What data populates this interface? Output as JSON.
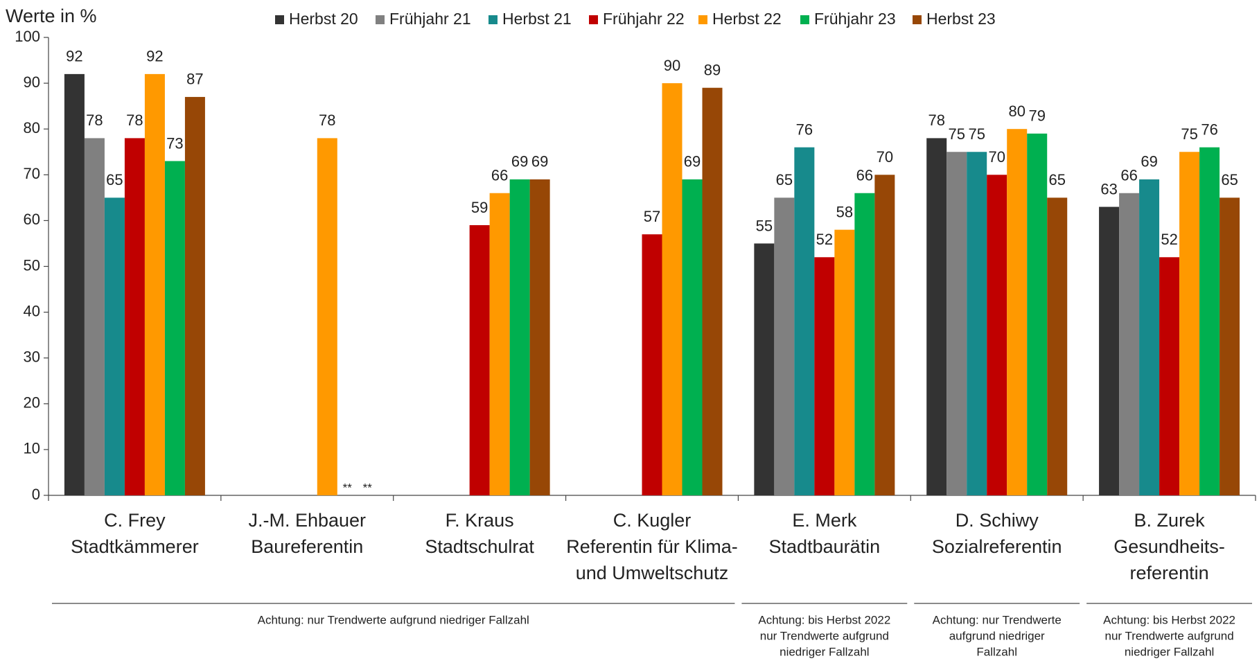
{
  "chart_data": {
    "type": "bar",
    "title": "Werte in %",
    "categories": [
      [
        "C. Frey",
        "Stadtkämmerer"
      ],
      [
        "J.-M. Ehbauer",
        "Baureferentin"
      ],
      [
        "F. Kraus",
        "Stadtschulrat"
      ],
      [
        "C. Kugler",
        "Referentin für Klima-",
        "und Umweltschutz"
      ],
      [
        "E. Merk",
        "Stadtbaurätin"
      ],
      [
        "D. Schiwy",
        "Sozialreferentin"
      ],
      [
        "B. Zurek",
        "Gesundheits-",
        "referentin"
      ]
    ],
    "series": [
      {
        "name": "Herbst 20",
        "color": "#333333",
        "values": [
          92,
          null,
          null,
          null,
          55,
          78,
          63
        ]
      },
      {
        "name": "Frühjahr 21",
        "color": "#808080",
        "values": [
          78,
          null,
          null,
          null,
          65,
          75,
          66
        ]
      },
      {
        "name": "Herbst 21",
        "color": "#178a8c",
        "values": [
          65,
          null,
          null,
          null,
          76,
          75,
          69
        ]
      },
      {
        "name": "Frühjahr 22",
        "color": "#c00000",
        "values": [
          78,
          null,
          59,
          57,
          52,
          70,
          52
        ]
      },
      {
        "name": "Herbst 22",
        "color": "#ff9900",
        "values": [
          92,
          78,
          66,
          90,
          58,
          80,
          75
        ]
      },
      {
        "name": "Frühjahr 23",
        "color": "#00b050",
        "values": [
          73,
          null,
          69,
          69,
          66,
          79,
          76
        ],
        "value_labels": [
          "73",
          "**",
          "69",
          "69",
          "66",
          "79",
          "76"
        ]
      },
      {
        "name": "Herbst 23",
        "color": "#974706",
        "values": [
          87,
          null,
          69,
          89,
          70,
          65,
          65
        ],
        "value_labels": [
          "87",
          "**",
          "69",
          "89",
          "70",
          "65",
          "65"
        ]
      }
    ],
    "ylim": [
      0,
      100
    ],
    "yticks": [
      0,
      10,
      20,
      30,
      40,
      50,
      60,
      70,
      80,
      90,
      100
    ],
    "grid": false,
    "legend": "top",
    "notes": [
      [
        "Achtung: nur Trendwerte aufgrund niedriger Fallzahl"
      ],
      [
        "Achtung: bis Herbst 2022",
        "nur Trendwerte aufgrund",
        "niedriger Fallzahl"
      ],
      [
        "Achtung: nur Trendwerte",
        "aufgrund niedriger",
        "Fallzahl"
      ],
      [
        "Achtung: bis Herbst 2022",
        "nur Trendwerte aufgrund",
        "niedriger Fallzahl"
      ]
    ]
  }
}
